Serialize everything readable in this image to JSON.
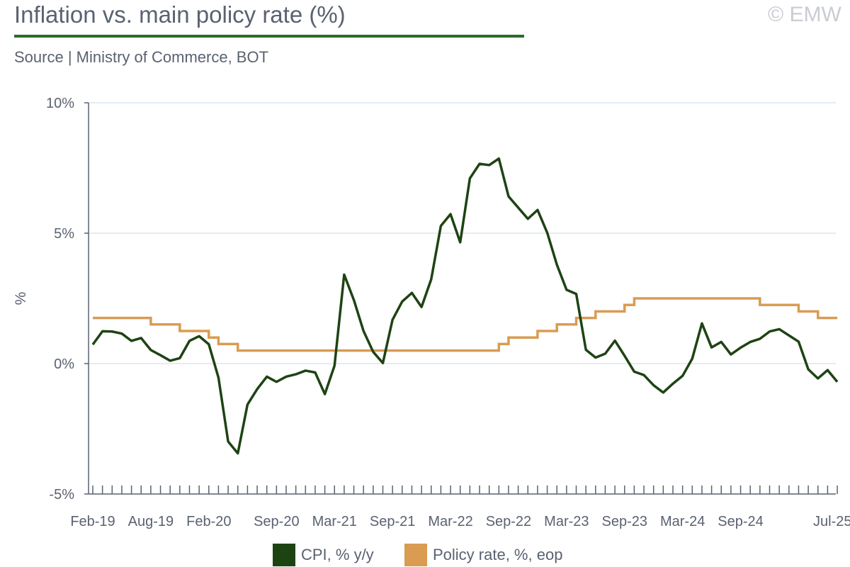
{
  "header": {
    "title": "Inflation vs. main policy rate (%)",
    "source": "Source | Ministry of Commerce, BOT",
    "copyright": "© EMW"
  },
  "colors": {
    "cpi": "#1e4313",
    "policy": "#d99c52",
    "grid": "#dce6ef",
    "axis": "#5a6271",
    "title_rule": "#2d6b2a"
  },
  "chart_data": {
    "type": "line",
    "title": "Inflation vs. main policy rate (%)",
    "ylabel": "%",
    "ylim": [
      -5,
      10
    ],
    "yticks": [
      -5,
      0,
      5,
      10
    ],
    "ytick_labels": [
      "-5%",
      "0%",
      "5%",
      "10%"
    ],
    "xlim": [
      "Feb-19",
      "Jul-25"
    ],
    "grid": "horizontal",
    "legend_position": "bottom",
    "x_labels": [
      "Feb-19",
      "Aug-19",
      "Feb-20",
      "Sep-20",
      "Mar-21",
      "Sep-21",
      "Mar-22",
      "Sep-22",
      "Mar-23",
      "Sep-23",
      "Mar-24",
      "Sep-24",
      "Jul-25"
    ],
    "x": [
      "Feb-19",
      "Mar-19",
      "Apr-19",
      "May-19",
      "Jun-19",
      "Jul-19",
      "Aug-19",
      "Sep-19",
      "Oct-19",
      "Nov-19",
      "Dec-19",
      "Jan-20",
      "Feb-20",
      "Mar-20",
      "Apr-20",
      "May-20",
      "Jun-20",
      "Jul-20",
      "Aug-20",
      "Sep-20",
      "Oct-20",
      "Nov-20",
      "Dec-20",
      "Jan-21",
      "Feb-21",
      "Mar-21",
      "Apr-21",
      "May-21",
      "Jun-21",
      "Jul-21",
      "Aug-21",
      "Sep-21",
      "Oct-21",
      "Nov-21",
      "Dec-21",
      "Jan-22",
      "Feb-22",
      "Mar-22",
      "Apr-22",
      "May-22",
      "Jun-22",
      "Jul-22",
      "Aug-22",
      "Sep-22",
      "Oct-22",
      "Nov-22",
      "Dec-22",
      "Jan-23",
      "Feb-23",
      "Mar-23",
      "Apr-23",
      "May-23",
      "Jun-23",
      "Jul-23",
      "Aug-23",
      "Sep-23",
      "Oct-23",
      "Nov-23",
      "Dec-23",
      "Jan-24",
      "Feb-24",
      "Mar-24",
      "Apr-24",
      "May-24",
      "Jun-24",
      "Jul-24",
      "Aug-24",
      "Sep-24",
      "Oct-24",
      "Nov-24",
      "Dec-24",
      "Jan-25",
      "Feb-25",
      "Mar-25",
      "Apr-25",
      "May-25",
      "Jun-25",
      "Jul-25"
    ],
    "series": [
      {
        "name": "CPI, % y/y",
        "values": [
          0.73,
          1.24,
          1.23,
          1.15,
          0.87,
          0.98,
          0.52,
          0.32,
          0.11,
          0.21,
          0.87,
          1.05,
          0.74,
          -0.54,
          -2.99,
          -3.44,
          -1.57,
          -0.98,
          -0.5,
          -0.7,
          -0.5,
          -0.41,
          -0.27,
          -0.34,
          -1.17,
          -0.08,
          3.41,
          2.44,
          1.25,
          0.45,
          0.02,
          1.68,
          2.38,
          2.71,
          2.17,
          3.23,
          5.28,
          5.73,
          4.65,
          7.1,
          7.66,
          7.61,
          7.86,
          6.41,
          5.98,
          5.55,
          5.89,
          5.02,
          3.79,
          2.83,
          2.67,
          0.53,
          0.23,
          0.38,
          0.88,
          0.3,
          -0.31,
          -0.44,
          -0.83,
          -1.11,
          -0.77,
          -0.47,
          0.19,
          1.54,
          0.62,
          0.83,
          0.35,
          0.61,
          0.83,
          0.95,
          1.23,
          1.32,
          1.08,
          0.84,
          -0.22,
          -0.57,
          -0.25,
          -0.7
        ]
      },
      {
        "name": "Policy rate, %, eop",
        "values": [
          1.75,
          1.75,
          1.75,
          1.75,
          1.75,
          1.75,
          1.5,
          1.5,
          1.5,
          1.25,
          1.25,
          1.25,
          1.0,
          0.75,
          0.75,
          0.5,
          0.5,
          0.5,
          0.5,
          0.5,
          0.5,
          0.5,
          0.5,
          0.5,
          0.5,
          0.5,
          0.5,
          0.5,
          0.5,
          0.5,
          0.5,
          0.5,
          0.5,
          0.5,
          0.5,
          0.5,
          0.5,
          0.5,
          0.5,
          0.5,
          0.5,
          0.5,
          0.75,
          1.0,
          1.0,
          1.0,
          1.25,
          1.25,
          1.5,
          1.5,
          1.75,
          1.75,
          2.0,
          2.0,
          2.0,
          2.25,
          2.5,
          2.5,
          2.5,
          2.5,
          2.5,
          2.5,
          2.5,
          2.5,
          2.5,
          2.5,
          2.5,
          2.5,
          2.5,
          2.25,
          2.25,
          2.25,
          2.25,
          2.0,
          2.0,
          1.75,
          1.75,
          1.75
        ]
      }
    ]
  }
}
